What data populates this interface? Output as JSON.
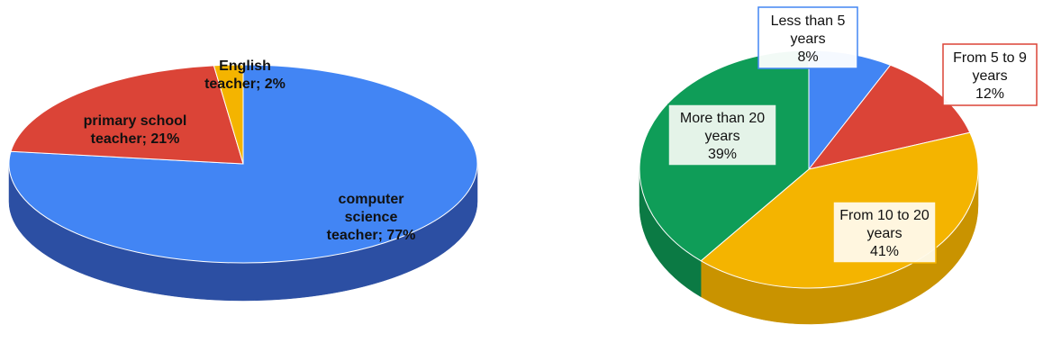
{
  "chart_data": [
    {
      "type": "pie",
      "style": "3d",
      "title": "",
      "legend": "none",
      "series": [
        {
          "slices": [
            {
              "label_lines": [
                "computer",
                "science",
                "teacher; 77%"
              ],
              "value": 77,
              "color": "#4285f4",
              "side_color": "#2c4fa3"
            },
            {
              "label_lines": [
                "primary school",
                "teacher; 21%"
              ],
              "value": 21,
              "color": "#db4437",
              "side_color": "#a8322a"
            },
            {
              "label_lines": [
                "English",
                "teacher; 2%"
              ],
              "value": 2,
              "color": "#f4b400",
              "side_color": "#c08c00"
            }
          ]
        }
      ]
    },
    {
      "type": "pie",
      "style": "3d",
      "title": "",
      "legend": "none",
      "series": [
        {
          "slices": [
            {
              "label_lines": [
                "Less than 5",
                "years",
                "8%"
              ],
              "value": 8,
              "color": "#4285f4",
              "side_color": "#2c62c4",
              "label_border": "#4285f4"
            },
            {
              "label_lines": [
                "From 5 to 9",
                "years",
                "12%"
              ],
              "value": 12,
              "color": "#db4437",
              "side_color": "#b0362b",
              "label_border": "#db4437"
            },
            {
              "label_lines": [
                "From 10 to 20",
                "years",
                "41%"
              ],
              "value": 41,
              "color": "#f4b400",
              "side_color": "#c99300",
              "label_border": "#f4b400"
            },
            {
              "label_lines": [
                "More than 20",
                "years",
                "39%"
              ],
              "value": 39,
              "color": "#0f9d58",
              "side_color": "#0b7a44",
              "label_border": "#0f9d58"
            }
          ]
        }
      ]
    }
  ]
}
